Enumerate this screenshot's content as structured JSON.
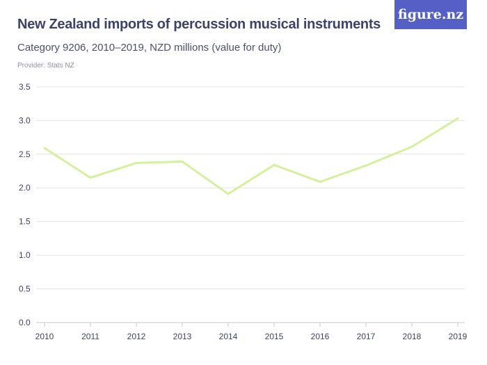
{
  "header": {
    "title": "New Zealand imports of percussion musical instruments",
    "subtitle": "Category 9206, 2010–2019, NZD millions (value for duty)",
    "provider": "Provider: Stats NZ",
    "logo": "figure.nz"
  },
  "colors": {
    "line": "#d4f09a",
    "grid": "#e2e2e2",
    "logo_bg": "#5460c6"
  },
  "chart_data": {
    "type": "line",
    "title": "New Zealand imports of percussion musical instruments",
    "subtitle": "Category 9206, 2010–2019, NZD millions (value for duty)",
    "xlabel": "",
    "ylabel": "",
    "x": [
      "2010",
      "2011",
      "2012",
      "2013",
      "2014",
      "2015",
      "2016",
      "2017",
      "2018",
      "2019"
    ],
    "series": [
      {
        "values": [
          2.59,
          2.15,
          2.37,
          2.39,
          1.91,
          2.34,
          2.09,
          2.33,
          2.61,
          3.03
        ]
      }
    ],
    "ylim": [
      0,
      3.5
    ],
    "yticks": [
      "0.0",
      "0.5",
      "1.0",
      "1.5",
      "2.0",
      "2.5",
      "3.0",
      "3.5"
    ],
    "grid": true,
    "legend": "none"
  }
}
